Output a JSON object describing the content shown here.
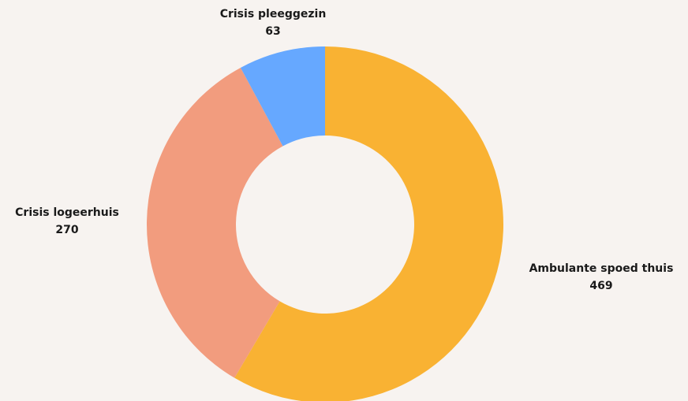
{
  "chart_data": {
    "type": "pie",
    "variant": "donut",
    "slices": [
      {
        "label": "Ambulante spoed thuis",
        "value": 469,
        "value_label": "469",
        "color": "#f9b233"
      },
      {
        "label": "Crisis logeerhuis",
        "value": 270,
        "value_label": "270",
        "color": "#f29c7e"
      },
      {
        "label": "Crisis pleeggezin",
        "value": 63,
        "value_label": "63",
        "color": "#66a8ff"
      }
    ],
    "start_angle_deg": 0,
    "direction": "clockwise",
    "background": "#f7f3f0"
  }
}
